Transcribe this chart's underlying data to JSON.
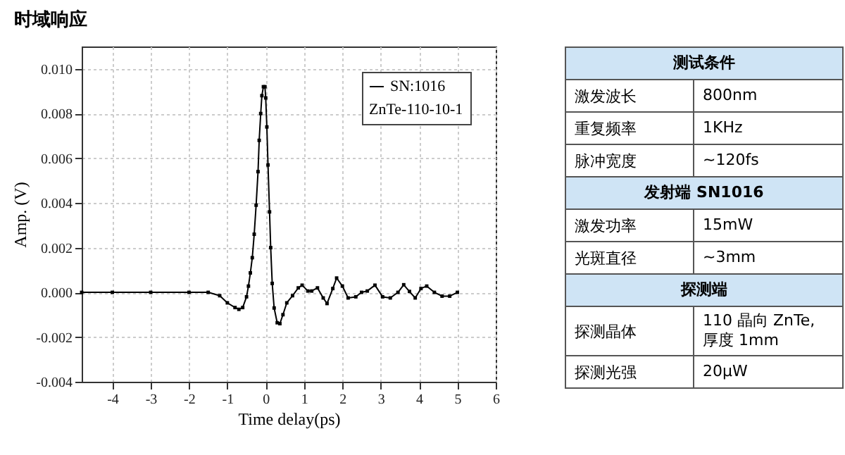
{
  "chart_data": [
    {
      "type": "line",
      "title": "时域响应",
      "xlabel": "Time delay(ps)",
      "ylabel": "Amp. (V)",
      "legend_title": "ZnTe-110-10-1",
      "legend": "top right",
      "grid": true,
      "marker": "square",
      "line_style": "solid",
      "xlim": [
        -4.8,
        6
      ],
      "xticks": [
        -4,
        -3,
        -2,
        -1,
        0,
        1,
        2,
        3,
        4,
        5,
        6
      ],
      "ylim": [
        -0.004,
        0.011
      ],
      "yticks": [
        {
          "value": -0.004,
          "label": "-0.004"
        },
        {
          "value": -0.002,
          "label": "-0.002"
        },
        {
          "value": 0,
          "label": "0.000"
        },
        {
          "value": 0.002,
          "label": "0.002"
        },
        {
          "value": 0.004,
          "label": "0.004"
        },
        {
          "value": 0.006,
          "label": "0.006"
        },
        {
          "value": 0.008,
          "label": "0.008"
        },
        {
          "value": 0.01,
          "label": "0.010"
        }
      ],
      "series": [
        {
          "name": "SN:1016",
          "color": "#000000",
          "x": [
            -4.8,
            -4,
            -3,
            -2,
            -1.5,
            -1.2,
            -1.0,
            -0.8,
            -0.7,
            -0.6,
            -0.5,
            -0.45,
            -0.4,
            -0.35,
            -0.3,
            -0.25,
            -0.2,
            -0.17,
            -0.13,
            -0.1,
            -0.06,
            -0.02,
            0.0,
            0.03,
            0.06,
            0.1,
            0.13,
            0.17,
            0.22,
            0.3,
            0.37,
            0.45,
            0.55,
            0.7,
            0.85,
            0.95,
            1.1,
            1.2,
            1.35,
            1.5,
            1.6,
            1.75,
            1.85,
            2.0,
            2.15,
            2.35,
            2.5,
            2.65,
            2.85,
            3.05,
            3.25,
            3.45,
            3.6,
            3.75,
            3.9,
            4.05,
            4.2,
            4.4,
            4.6,
            4.8,
            5.0
          ],
          "values": [
            0,
            0,
            0,
            0,
            0,
            -0.00015,
            -0.00047,
            -0.00068,
            -0.00076,
            -0.00068,
            -0.0002,
            0.00028,
            0.00087,
            0.00155,
            0.0026,
            0.0039,
            0.0054,
            0.0068,
            0.008,
            0.0088,
            0.0092,
            0.0092,
            0.0087,
            0.0074,
            0.0057,
            0.0036,
            0.002,
            0.0004,
            -0.0007,
            -0.00136,
            -0.0014,
            -0.001,
            -0.00047,
            -0.00015,
            0.0002,
            0.00032,
            6e-05,
            6e-05,
            0.0002,
            -0.00025,
            -0.0005,
            0.00017,
            0.00064,
            0.00028,
            -0.00025,
            -0.0002,
            0,
            6e-05,
            0.00032,
            -0.0002,
            -0.00025,
            0,
            0.00034,
            4e-05,
            -0.00025,
            0.00017,
            0.00028,
            0,
            -0.00017,
            -0.00017,
            0
          ]
        }
      ]
    },
    {
      "type": "other",
      "title": "测试条件",
      "annotations": [
        "激发波长",
        "800nm",
        "重复频率",
        "1KHz",
        "脉冲宽度",
        "~120fs"
      ]
    },
    {
      "type": "other",
      "title": "发射端 SN1016",
      "annotations": [
        "激发功率",
        "15mW",
        "光斑直径",
        "~3mm"
      ]
    },
    {
      "type": "other",
      "title": "探测端",
      "annotations": [
        "探测晶体",
        "110 晶向 ZnTe, 厚度 1mm",
        "探测光强",
        "20μW"
      ]
    }
  ]
}
